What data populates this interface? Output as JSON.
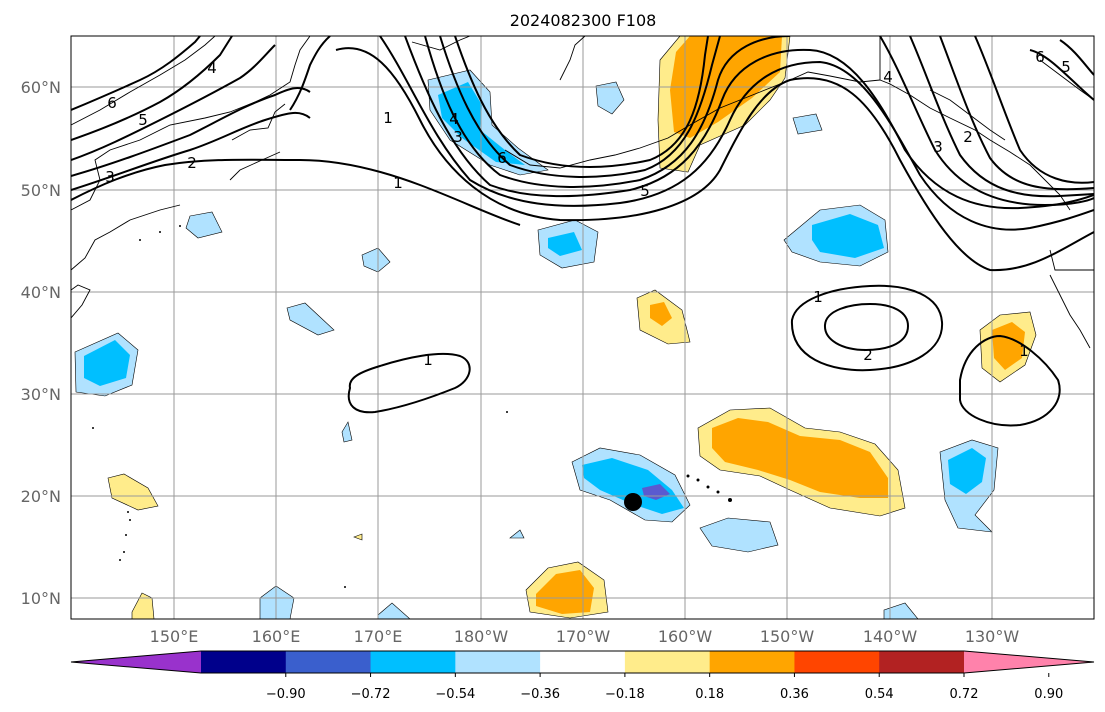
{
  "title": "2024082300 F108",
  "lat_labels": [
    "60°N",
    "50°N",
    "40°N",
    "30°N",
    "20°N",
    "10°N"
  ],
  "lon_labels": [
    "150°E",
    "160°E",
    "170°E",
    "180°W",
    "170°W",
    "160°W",
    "150°W",
    "140°W",
    "130°W"
  ],
  "contour_labels": [
    "1",
    "1",
    "1",
    "1",
    "2",
    "2",
    "3",
    "3",
    "4",
    "4",
    "5",
    "5",
    "6",
    "6",
    "1",
    "2",
    "3",
    "4",
    "5",
    "6"
  ],
  "colorbar": {
    "ticks": [
      "−0.90",
      "−0.72",
      "−0.54",
      "−0.36",
      "−0.18",
      "0.18",
      "0.36",
      "0.54",
      "0.72",
      "0.90"
    ],
    "colors": [
      "#9932cc",
      "#00008b",
      "#3a5fcd",
      "#00bfff",
      "#b0e2ff",
      "#ffffff",
      "#ffec8b",
      "#ffa500",
      "#ff4500",
      "#b22222",
      "#ff82ab"
    ]
  },
  "colors": {
    "light_blue": "#b0e2ff",
    "deep_sky_blue": "#00bfff",
    "slate_blue": "#5a5ad0",
    "light_yellow": "#ffec8b",
    "orange": "#ffa500"
  },
  "marker": "storm-center-dot"
}
